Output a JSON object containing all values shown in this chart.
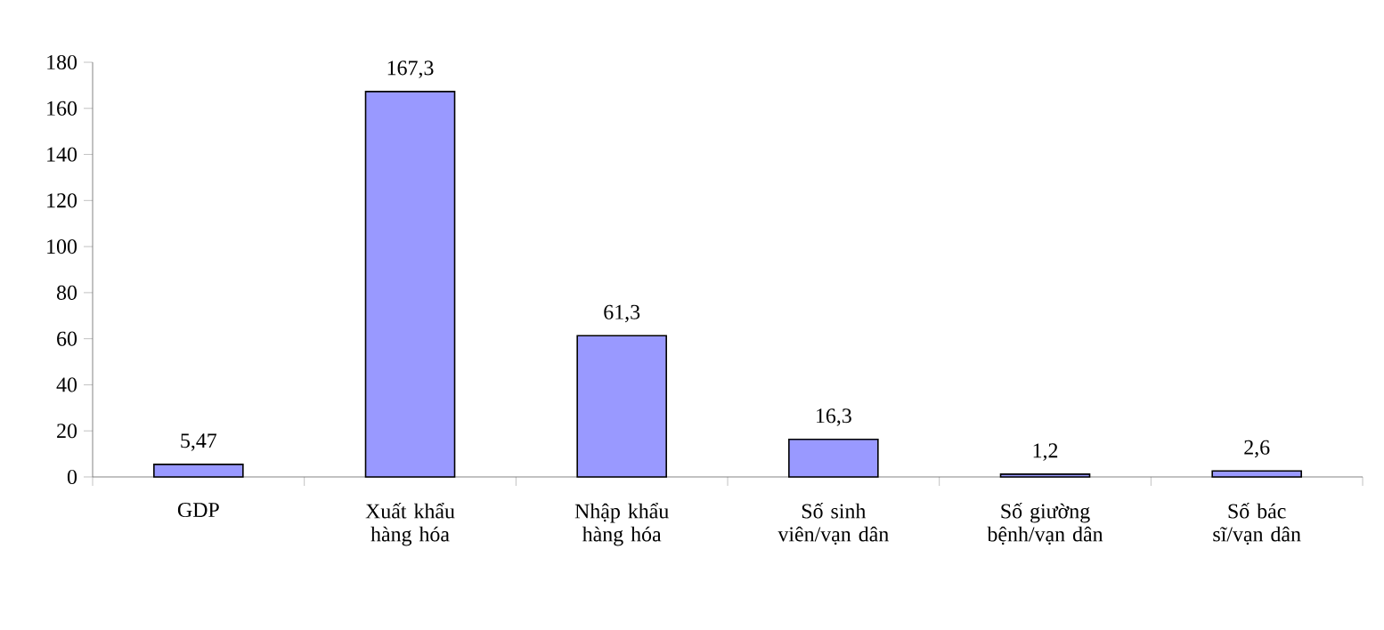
{
  "chart_data": {
    "type": "bar",
    "categories": [
      "GDP",
      "Xuất khẩu hàng hóa",
      "Nhập khẩu hàng hóa",
      "Số sinh viên/vạn dân",
      "Số giường bệnh/vạn dân",
      "Số bác sĩ/vạn dân"
    ],
    "values": [
      5.47,
      167.3,
      61.3,
      16.3,
      1.2,
      2.6
    ],
    "value_labels": [
      "5,47",
      "167,3",
      "61,3",
      "16,3",
      "1,2",
      "2,6"
    ],
    "color": "#9999ff",
    "ylim": [
      0,
      180
    ],
    "yticks": [
      0,
      20,
      40,
      60,
      80,
      100,
      120,
      140,
      160,
      180
    ],
    "grid": false
  }
}
